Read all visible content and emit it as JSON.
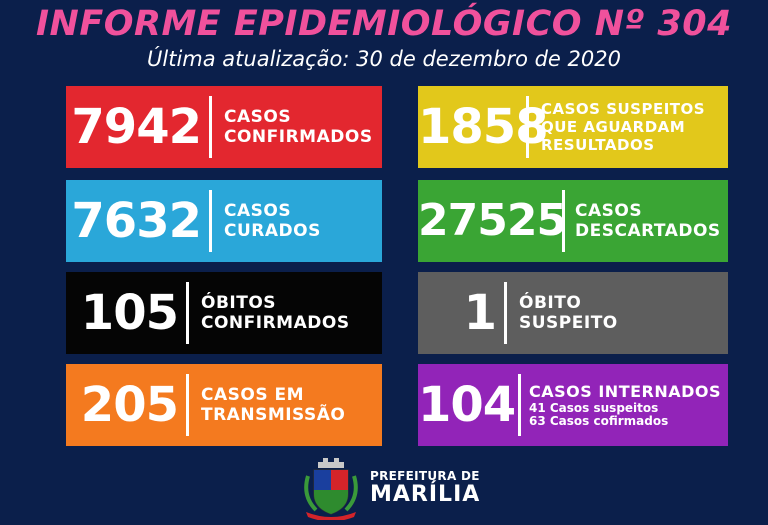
{
  "header": {
    "title": "INFORME EPIDEMIOLÓGICO Nº 304",
    "subtitle": "Última atualização: 30 de dezembro de 2020"
  },
  "colors": {
    "title": "#f0519c",
    "confirmed": "#e3272f",
    "suspected": "#e2c81b",
    "cured": "#2aa7d9",
    "discarded": "#3aa534",
    "deaths": "#050505",
    "suspect_death": "#5e5e5e",
    "transmission": "#f47a1f",
    "hospitalized": "#9224b8"
  },
  "cards": {
    "confirmed": {
      "value": "7942",
      "line1": "CASOS",
      "line2": "CONFIRMADOS"
    },
    "suspected": {
      "value": "1858",
      "line1": "CASOS SUSPEITOS",
      "line2": "QUE AGUARDAM",
      "line3": "RESULTADOS"
    },
    "cured": {
      "value": "7632",
      "line1": "CASOS",
      "line2": "CURADOS"
    },
    "discarded": {
      "value": "27525",
      "line1": "CASOS",
      "line2": "DESCARTADOS"
    },
    "deaths": {
      "value": "105",
      "line1": "ÓBITOS",
      "line2": "CONFIRMADOS"
    },
    "suspect_death": {
      "value": "1",
      "line1": "ÓBITO",
      "line2": "SUSPEITO"
    },
    "transmission": {
      "value": "205",
      "line1": "CASOS EM",
      "line2": "TRANSMISSÃO"
    },
    "hospitalized": {
      "value": "104",
      "line1": "CASOS INTERNADOS",
      "detail1": "41 Casos suspeitos",
      "detail2": "63 Casos cofirmados"
    }
  },
  "footer": {
    "crest_icon": "municipal-coat-of-arms-icon",
    "line1": "PREFEITURA DE",
    "line2": "MARÍLIA"
  }
}
